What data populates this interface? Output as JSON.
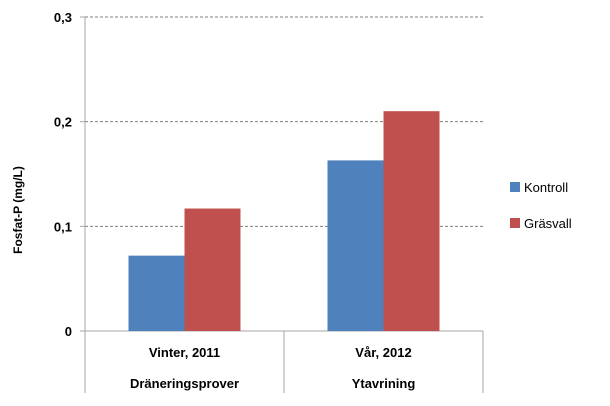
{
  "chart_data": {
    "type": "bar",
    "categories": [
      "Vinter, 2011",
      "Vår, 2012"
    ],
    "groups": [
      "Dräneringsprover",
      "Ytavrining"
    ],
    "series": [
      {
        "name": "Kontroll",
        "values": [
          0.072,
          0.163
        ],
        "color": "#4F81BD"
      },
      {
        "name": "Gräsvall",
        "values": [
          0.117,
          0.21
        ],
        "color": "#C0504D"
      }
    ],
    "ylabel": "Fosfat-P (mg/L)",
    "xlabel": "",
    "ylim": [
      0,
      0.3
    ],
    "yticks": [
      0,
      0.1,
      0.2,
      0.3
    ],
    "ytick_labels": [
      "0",
      "0,1",
      "0,2",
      "0,3"
    ],
    "grid": true,
    "legend_position": "right"
  }
}
